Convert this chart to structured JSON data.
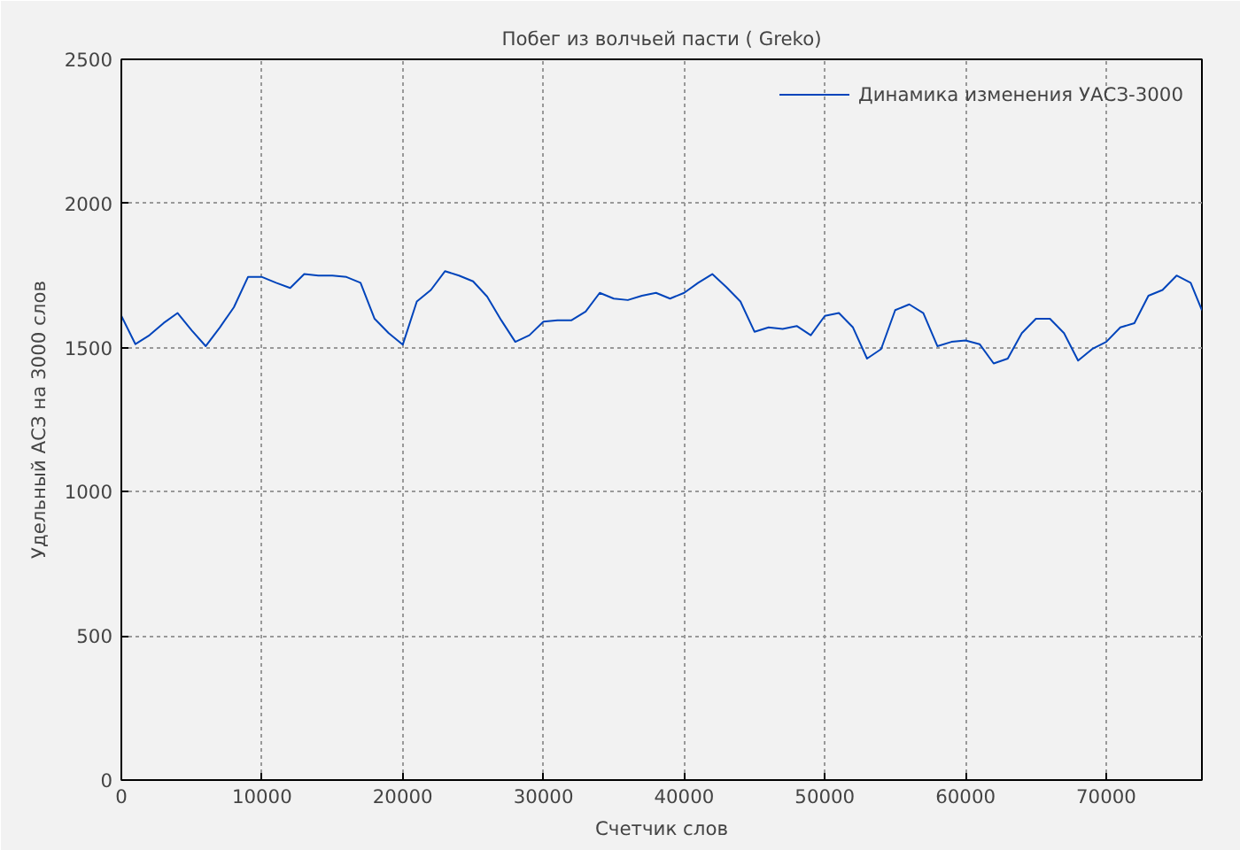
{
  "chart_data": {
    "type": "line",
    "title": "Побег из волчьей пасти ( Greko)",
    "xlabel": "Счетчик слов",
    "ylabel": "Удельный АСЗ на 3000 слов",
    "x": [
      0,
      1000,
      2000,
      3000,
      4000,
      5000,
      6000,
      7000,
      8000,
      9000,
      10000,
      11000,
      12000,
      13000,
      14000,
      15000,
      16000,
      17000,
      18000,
      19000,
      20000,
      21000,
      22000,
      23000,
      24000,
      25000,
      26000,
      27000,
      28000,
      29000,
      30000,
      31000,
      32000,
      33000,
      34000,
      35000,
      36000,
      37000,
      38000,
      39000,
      40000,
      41000,
      42000,
      43000,
      44000,
      45000,
      46000,
      47000,
      48000,
      49000,
      50000,
      51000,
      52000,
      53000,
      54000,
      55000,
      56000,
      57000,
      58000,
      59000,
      60000,
      61000,
      62000,
      63000,
      64000,
      65000,
      66000,
      67000,
      68000,
      69000,
      70000,
      71000,
      72000,
      73000,
      74000,
      75000,
      76000,
      76800
    ],
    "series": [
      {
        "name": "Динамика изменения УАСЗ-3000",
        "color": "#0044bb",
        "values": [
          1610,
          1512,
          1543,
          1585,
          1620,
          1560,
          1505,
          1570,
          1640,
          1745,
          1745,
          1725,
          1707,
          1755,
          1750,
          1750,
          1745,
          1725,
          1600,
          1550,
          1510,
          1660,
          1700,
          1765,
          1750,
          1730,
          1677,
          1595,
          1520,
          1543,
          1590,
          1595,
          1595,
          1625,
          1690,
          1670,
          1665,
          1680,
          1690,
          1670,
          1690,
          1725,
          1755,
          1710,
          1660,
          1555,
          1570,
          1565,
          1575,
          1543,
          1610,
          1620,
          1570,
          1462,
          1495,
          1630,
          1650,
          1620,
          1505,
          1520,
          1525,
          1512,
          1445,
          1462,
          1550,
          1600,
          1600,
          1550,
          1455,
          1495,
          1520,
          1570,
          1585,
          1680,
          1700,
          1750,
          1725,
          1630
        ]
      }
    ],
    "xlim": [
      0,
      76800
    ],
    "ylim": [
      0,
      2500
    ],
    "xticks": [
      0,
      10000,
      20000,
      30000,
      40000,
      50000,
      60000,
      70000
    ],
    "yticks": [
      0,
      500,
      1000,
      1500,
      2000,
      2500
    ],
    "grid": true,
    "legend": "top right",
    "line_style": "solid"
  }
}
